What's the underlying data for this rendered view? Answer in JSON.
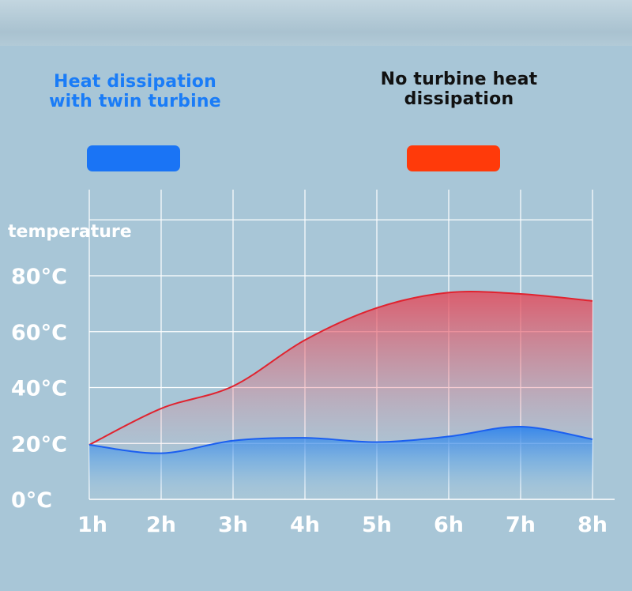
{
  "legend": {
    "blue_label": "Heat dissipation\nwith twin turbine",
    "red_label": "No turbine heat\ndissipation"
  },
  "colors": {
    "blue": "#1a74f5",
    "red": "#ff3a0a",
    "blue_text": "#1a7cf7",
    "red_text": "#111111",
    "grid": "#ffffff"
  },
  "chart_data": {
    "type": "area",
    "ylabel": "temperature",
    "xlabel": "",
    "categories": [
      "1h",
      "2h",
      "3h",
      "4h",
      "5h",
      "6h",
      "7h",
      "8h"
    ],
    "yticks": [
      "0°C",
      "20°C",
      "40°C",
      "60°C",
      "80°C"
    ],
    "ylim": [
      0,
      80
    ],
    "grid": true,
    "legend_position": "top",
    "series": [
      {
        "name": "Heat dissipation with twin turbine",
        "color": "blue",
        "values": [
          19.5,
          16.5,
          21,
          22,
          20.5,
          22.5,
          26,
          21.5
        ]
      },
      {
        "name": "No turbine heat dissipation",
        "color": "red",
        "values": [
          19.5,
          32.5,
          40.5,
          57,
          68.5,
          74,
          73.5,
          71
        ]
      }
    ]
  }
}
